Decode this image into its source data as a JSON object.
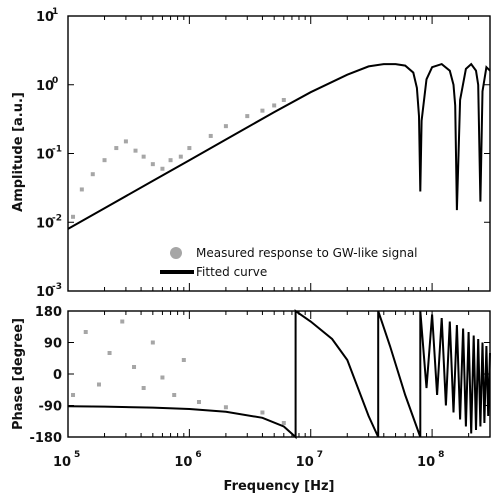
{
  "chart_data": [
    {
      "type": "scatter",
      "panel": "amplitude",
      "xlabel": "",
      "ylabel": "Amplitude [a.u.]",
      "xscale": "log",
      "yscale": "log",
      "xlim": [
        100000,
        300000000
      ],
      "ylim": [
        0.001,
        10
      ],
      "y_tick_labels": [
        {
          "base": "10",
          "exp": "1",
          "value": 10
        },
        {
          "base": "10",
          "exp": "0",
          "value": 1
        },
        {
          "base": "10",
          "exp": "-1",
          "value": 0.1
        },
        {
          "base": "10",
          "exp": "-2",
          "value": 0.01
        },
        {
          "base": "10",
          "exp": "-3",
          "value": 0.001
        }
      ],
      "grid": false,
      "legend_placement": "bottom-right",
      "series": [
        {
          "name": "Measured response to GW-like signal",
          "kind": "scatter",
          "color": "#a6a6a6",
          "note_points": "noisy scatter around fitted curve, larger spread below 1e6 Hz",
          "x": [
            110000,
            130000,
            160000,
            200000,
            250000,
            300000,
            360000,
            420000,
            500000,
            600000,
            700000,
            850000,
            1000000,
            1500000,
            2000000,
            3000000,
            4000000,
            5000000,
            6000000
          ],
          "y": [
            0.012,
            0.03,
            0.05,
            0.08,
            0.12,
            0.15,
            0.11,
            0.09,
            0.07,
            0.06,
            0.08,
            0.09,
            0.12,
            0.18,
            0.25,
            0.35,
            0.42,
            0.5,
            0.6
          ]
        },
        {
          "name": "Fitted curve",
          "kind": "line",
          "color": "#000000",
          "x": [
            100000,
            200000,
            500000,
            1000000,
            2000000,
            5000000,
            10000000,
            20000000,
            30000000,
            40000000,
            50000000,
            60000000,
            70000000,
            75000000,
            78000000,
            80000000,
            82000000,
            90000000,
            100000000,
            120000000,
            140000000,
            150000000,
            155000000,
            160000000,
            170000000,
            190000000,
            210000000,
            230000000,
            240000000,
            250000000,
            260000000,
            280000000,
            300000000
          ],
          "y": [
            0.008,
            0.016,
            0.04,
            0.08,
            0.16,
            0.4,
            0.78,
            1.4,
            1.85,
            2.0,
            2.0,
            1.9,
            1.5,
            0.9,
            0.35,
            0.028,
            0.3,
            1.2,
            1.8,
            2.0,
            1.6,
            1.0,
            0.5,
            0.015,
            0.6,
            1.7,
            2.0,
            1.6,
            1.0,
            0.02,
            0.8,
            1.8,
            1.6
          ]
        }
      ]
    },
    {
      "type": "scatter",
      "panel": "phase",
      "xlabel": "Frequency [Hz]",
      "ylabel": "Phase [degree]",
      "xscale": "log",
      "xlim": [
        100000,
        300000000
      ],
      "ylim": [
        -180,
        180
      ],
      "x_tick_labels": [
        {
          "base": "10",
          "exp": "5",
          "value": 100000
        },
        {
          "base": "10",
          "exp": "6",
          "value": 1000000
        },
        {
          "base": "10",
          "exp": "7",
          "value": 10000000
        },
        {
          "base": "10",
          "exp": "8",
          "value": 100000000
        }
      ],
      "y_ticks": [
        "180",
        "90",
        "0",
        "-90",
        "-180"
      ],
      "grid": false,
      "series": [
        {
          "kind": "scatter",
          "color": "#a6a6a6",
          "note_points": "phase scatter with large spread below 1e6 Hz, tracking curve above",
          "x": [
            110000,
            140000,
            180000,
            220000,
            280000,
            350000,
            420000,
            500000,
            600000,
            750000,
            900000,
            1200000,
            2000000,
            4000000,
            6000000
          ],
          "y": [
            -60,
            120,
            -30,
            60,
            150,
            20,
            -40,
            90,
            -10,
            -60,
            40,
            -80,
            -95,
            -110,
            -140
          ]
        },
        {
          "kind": "line",
          "color": "#000000",
          "x": [
            100000,
            200000,
            500000,
            1000000,
            2000000,
            4000000,
            6000000,
            7500000,
            7500001,
            10000000,
            15000000,
            20000000,
            30000000,
            36000000,
            36000001,
            45000000,
            60000000,
            80000000,
            80000001,
            90000000,
            100000000,
            110000000,
            120000000,
            130000000,
            140000000,
            150000000,
            160000000,
            170000000,
            180000000,
            190000000,
            200000000,
            210000000,
            220000000,
            230000000,
            240000000,
            250000000,
            260000000,
            270000000,
            280000000,
            290000000,
            300000000
          ],
          "y": [
            -92,
            -93,
            -96,
            -100,
            -108,
            -125,
            -150,
            -180,
            180,
            150,
            100,
            40,
            -120,
            -180,
            180,
            80,
            -60,
            -180,
            180,
            -40,
            170,
            -60,
            160,
            -90,
            150,
            -110,
            140,
            -130,
            130,
            -150,
            120,
            -170,
            110,
            -160,
            100,
            -150,
            90,
            -140,
            80,
            -120,
            60
          ]
        }
      ]
    }
  ]
}
